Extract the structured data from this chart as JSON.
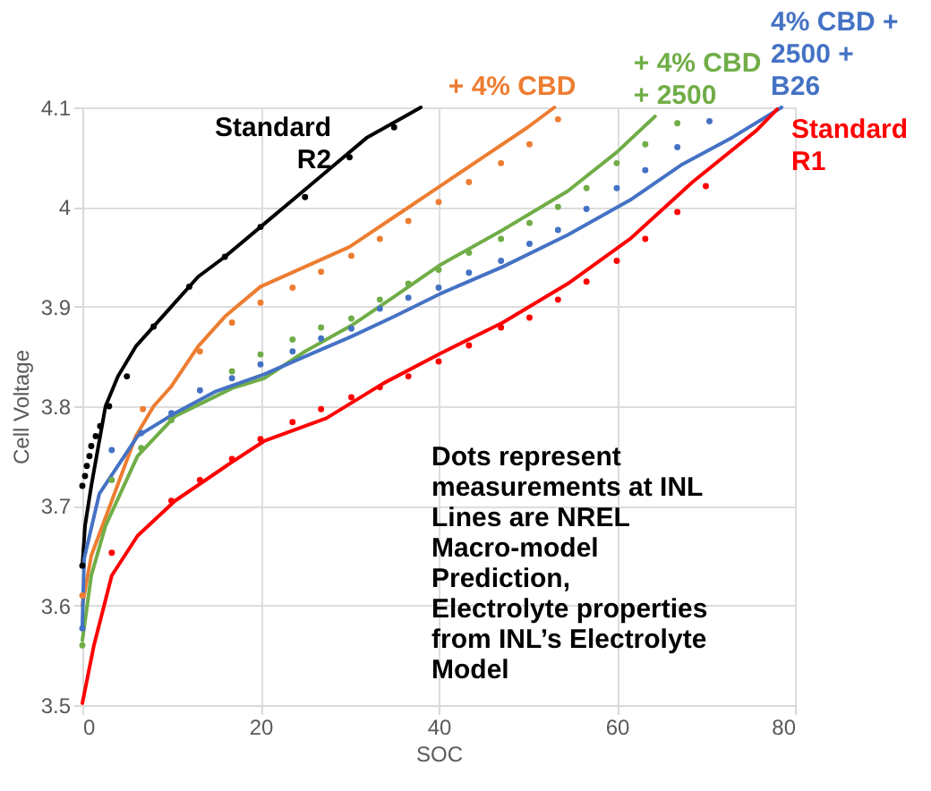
{
  "chart_data": {
    "type": "line",
    "xlabel": "SOC",
    "ylabel": "Cell Voltage",
    "xlim": [
      0,
      80
    ],
    "xticks": [
      0,
      20,
      40,
      60,
      80
    ],
    "ylim": [
      3.5,
      4.1
    ],
    "yticks": [
      3.5,
      3.6,
      3.7,
      3.8,
      3.9,
      4,
      4.1
    ],
    "grid": true,
    "legend": false,
    "annotations": [
      "Dots represent measurements at INL",
      "Lines are NREL Macro-model Prediction, Electrolyte properties from INL’s Electrolyte Model"
    ],
    "series": [
      {
        "name": "Standard R2",
        "type": "line",
        "color": "#000000",
        "x": [
          0,
          0.3,
          1,
          2,
          2.6,
          4,
          6,
          8,
          10,
          13,
          16,
          20,
          24,
          28,
          32,
          36,
          38
        ],
        "values": [
          3.64,
          3.68,
          3.72,
          3.77,
          3.8,
          3.83,
          3.86,
          3.88,
          3.9,
          3.93,
          3.95,
          3.98,
          4.01,
          4.04,
          4.07,
          4.09,
          4.1
        ]
      },
      {
        "type": "scatter",
        "color": "#000000",
        "x": [
          0,
          0,
          0.3,
          0.5,
          0.8,
          1,
          1.5,
          2,
          3,
          5,
          8,
          12,
          16,
          20,
          25,
          30,
          35
        ],
        "values": [
          3.64,
          3.72,
          3.73,
          3.74,
          3.75,
          3.76,
          3.77,
          3.78,
          3.8,
          3.83,
          3.88,
          3.92,
          3.95,
          3.98,
          4.01,
          4.05,
          4.08
        ]
      },
      {
        "name": "+ 4% CBD",
        "type": "line",
        "color": "#ed7d31",
        "x": [
          0,
          1,
          3.3,
          6,
          8,
          10,
          13,
          16,
          20,
          25,
          30,
          35,
          40,
          45,
          50,
          53
        ],
        "values": [
          3.6,
          3.65,
          3.705,
          3.77,
          3.8,
          3.82,
          3.86,
          3.89,
          3.92,
          3.94,
          3.96,
          3.99,
          4.02,
          4.05,
          4.08,
          4.1
        ]
      },
      {
        "type": "scatter",
        "color": "#ed7d31",
        "x": [
          0,
          6.8,
          13.2,
          16.8,
          20,
          23.6,
          26.8,
          30.2,
          33.4,
          36.6,
          40,
          43.4,
          47,
          50.2,
          53.4
        ],
        "values": [
          3.61,
          3.797,
          3.855,
          3.884,
          3.904,
          3.919,
          3.935,
          3.951,
          3.968,
          3.986,
          4.005,
          4.025,
          4.044,
          4.063,
          4.088
        ]
      },
      {
        "name": "+ 4% CBD + 2500",
        "type": "line",
        "color": "#70ad47",
        "x": [
          0,
          1,
          2.6,
          6.2,
          10.4,
          16.8,
          20.4,
          25,
          30.2,
          35,
          40.2,
          47.2,
          54.5,
          60,
          64.3
        ],
        "values": [
          3.565,
          3.63,
          3.68,
          3.75,
          3.79,
          3.818,
          3.828,
          3.855,
          3.881,
          3.91,
          3.942,
          3.977,
          4.016,
          4.055,
          4.091
        ]
      },
      {
        "type": "scatter",
        "color": "#70ad47",
        "x": [
          0,
          3.3,
          6.6,
          10,
          16.8,
          20,
          23.6,
          26.8,
          30.2,
          33.4,
          36.6,
          40,
          43.4,
          47,
          50.2,
          53.4,
          56.6,
          60,
          63.2,
          66.8
        ],
        "values": [
          3.56,
          3.726,
          3.758,
          3.786,
          3.835,
          3.852,
          3.867,
          3.879,
          3.888,
          3.907,
          3.923,
          3.937,
          3.954,
          3.968,
          3.984,
          4.0,
          4.019,
          4.044,
          4.063,
          4.084
        ]
      },
      {
        "name": "4% CBD + 2500 + B26",
        "type": "line",
        "color": "#4472c4",
        "x": [
          0,
          0.2,
          1.9,
          6.2,
          10.4,
          15,
          20.4,
          25,
          30.2,
          35,
          40.2,
          47.2,
          54.5,
          61.5,
          67.2,
          73,
          78.5
        ],
        "values": [
          3.58,
          3.647,
          3.712,
          3.77,
          3.793,
          3.815,
          3.832,
          3.85,
          3.87,
          3.89,
          3.913,
          3.94,
          3.972,
          4.007,
          4.042,
          4.07,
          4.1
        ]
      },
      {
        "type": "scatter",
        "color": "#4472c4",
        "x": [
          0,
          3.3,
          6.6,
          10,
          13.2,
          16.8,
          20,
          23.6,
          26.8,
          30.2,
          33.4,
          36.6,
          40,
          43.4,
          47,
          50.2,
          53.4,
          56.6,
          60,
          63.2,
          66.8,
          70.4
        ],
        "values": [
          3.577,
          3.756,
          3.773,
          3.793,
          3.816,
          3.828,
          3.842,
          3.855,
          3.868,
          3.878,
          3.898,
          3.909,
          3.919,
          3.934,
          3.946,
          3.963,
          3.977,
          3.998,
          4.019,
          4.037,
          4.06,
          4.086
        ]
      },
      {
        "name": "Standard R1",
        "type": "line",
        "color": "#ff0000",
        "x": [
          0,
          1.3,
          3.3,
          6.2,
          10.4,
          16.8,
          20.4,
          27.4,
          33.8,
          40.2,
          47.2,
          54.5,
          61.5,
          68.5,
          75.7,
          78
        ],
        "values": [
          3.502,
          3.56,
          3.63,
          3.67,
          3.705,
          3.744,
          3.765,
          3.788,
          3.823,
          3.853,
          3.884,
          3.923,
          3.968,
          4.025,
          4.077,
          4.098
        ]
      },
      {
        "type": "scatter",
        "color": "#ff0000",
        "x": [
          3.3,
          10,
          13.2,
          16.8,
          20,
          23.6,
          26.8,
          30.2,
          33.4,
          36.6,
          40,
          43.4,
          47,
          50.2,
          53.4,
          56.6,
          60,
          63.2,
          66.8,
          70
        ],
        "values": [
          3.653,
          3.705,
          3.726,
          3.747,
          3.767,
          3.784,
          3.797,
          3.809,
          3.819,
          3.83,
          3.845,
          3.861,
          3.879,
          3.889,
          3.907,
          3.925,
          3.946,
          3.968,
          3.995,
          4.021
        ]
      }
    ]
  }
}
